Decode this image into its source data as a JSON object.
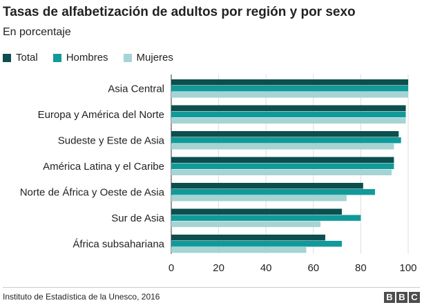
{
  "header": {
    "title": "Tasas de alfabetización de adultos por región y por sexo",
    "subtitle": "En porcentaje"
  },
  "legend": {
    "items": [
      {
        "label": "Total",
        "color": "#0d4e4e"
      },
      {
        "label": "Hombres",
        "color": "#119a9a"
      },
      {
        "label": "Mujeres",
        "color": "#a6d3d3"
      }
    ]
  },
  "footer": {
    "source": "Instituto de Estadística de la Unesco, 2016",
    "logo_letters": [
      "B",
      "B",
      "C"
    ]
  },
  "chart_data": {
    "type": "bar",
    "orientation": "horizontal",
    "title": "Tasas de alfabetización de adultos por región y por sexo",
    "subtitle": "En porcentaje",
    "categories": [
      "Asia Central",
      "Europa y América del Norte",
      "Sudeste y Este de Asia",
      "América Latina y el Caribe",
      "Norte de África y Oeste de Asia",
      "Sur de Asia",
      "África subsahariana"
    ],
    "series": [
      {
        "name": "Total",
        "color": "#0d4e4e",
        "values": [
          100,
          99,
          96,
          94,
          81,
          72,
          65
        ]
      },
      {
        "name": "Hombres",
        "color": "#119a9a",
        "values": [
          100,
          99,
          97,
          94,
          86,
          80,
          72
        ]
      },
      {
        "name": "Mujeres",
        "color": "#a6d3d3",
        "values": [
          100,
          99,
          94,
          93,
          74,
          63,
          57
        ]
      }
    ],
    "xlim": [
      0,
      100
    ],
    "xticks": [
      0,
      20,
      40,
      60,
      80,
      100
    ],
    "grid": true,
    "legend_position": "top-left"
  }
}
